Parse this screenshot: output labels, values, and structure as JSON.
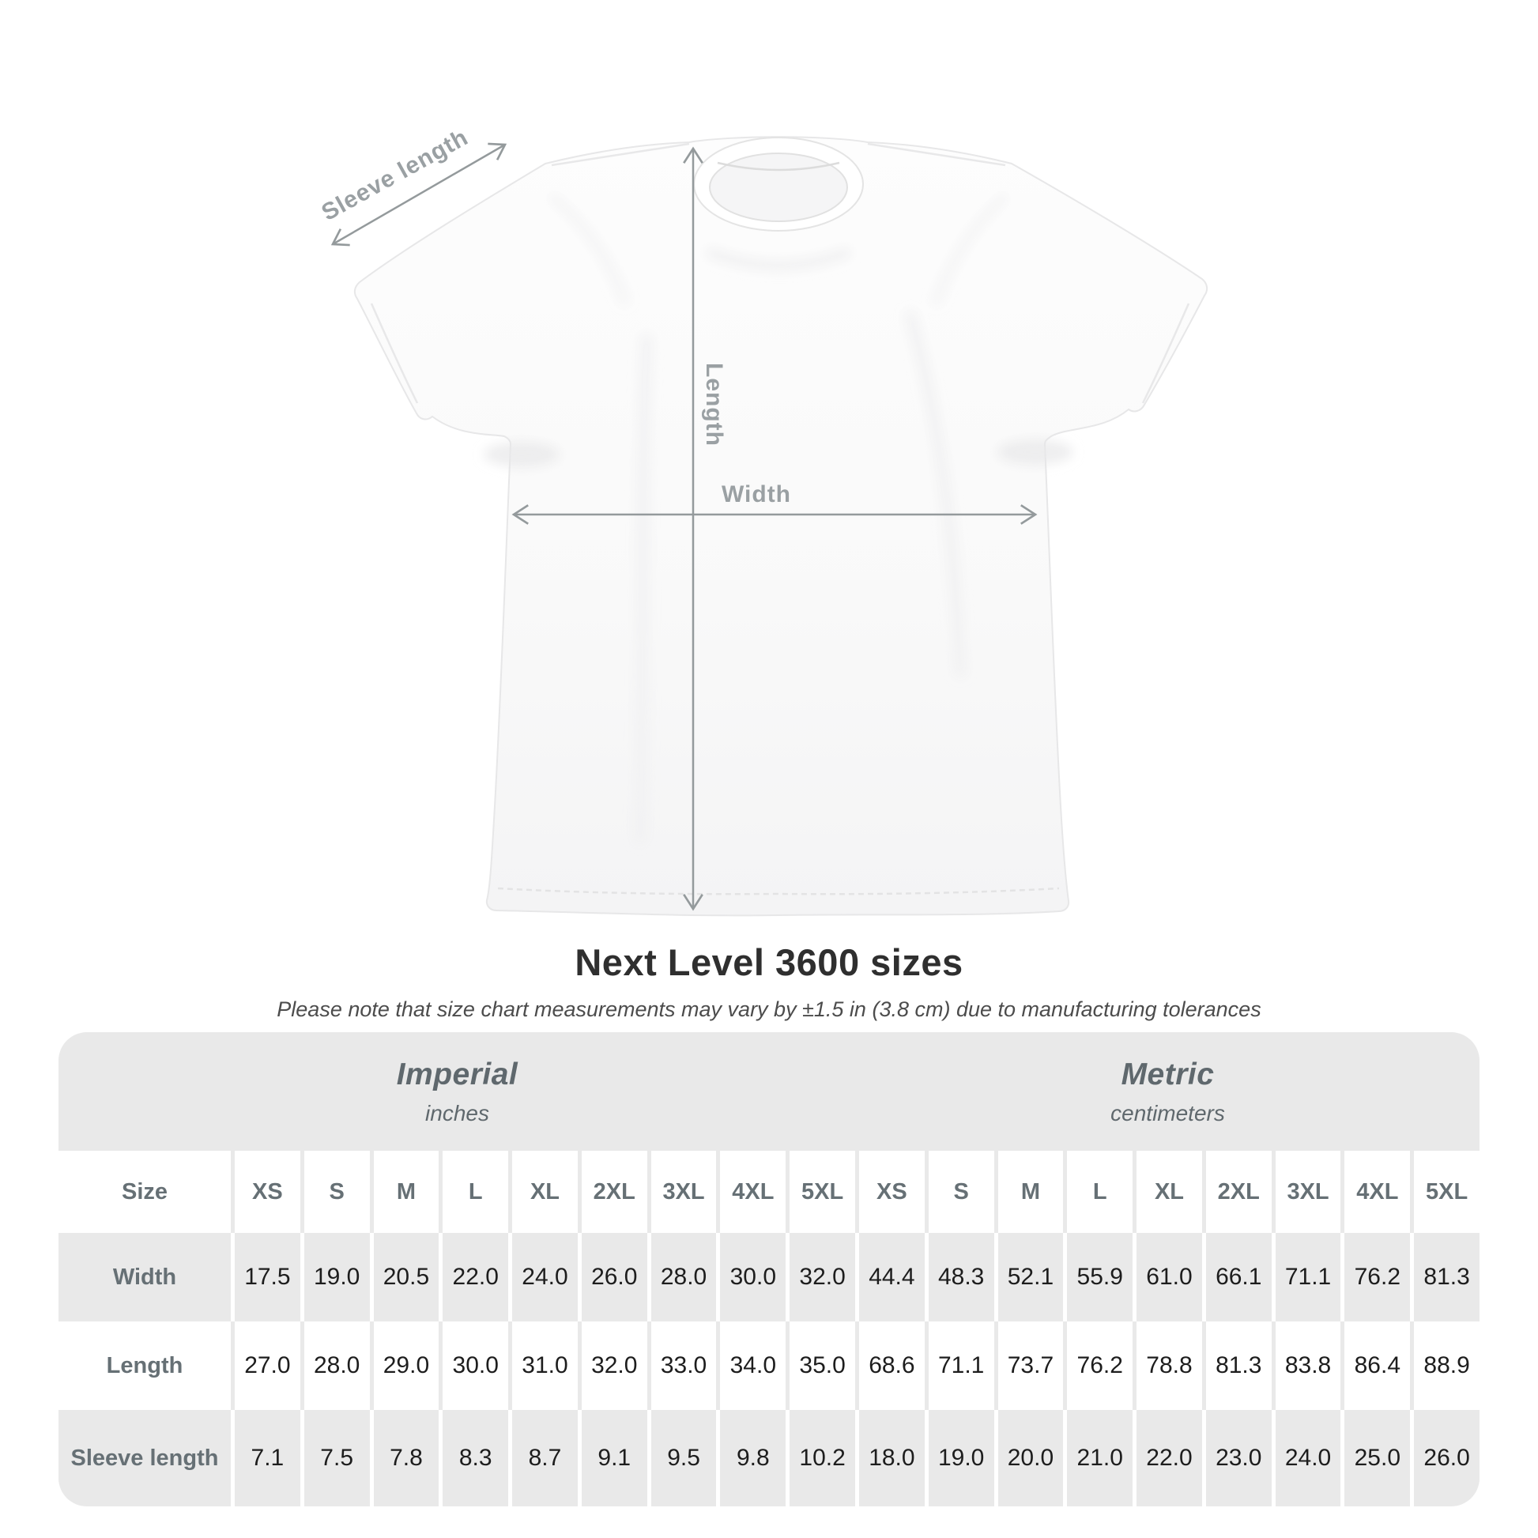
{
  "diagram": {
    "sleeve_label": "Sleeve length",
    "length_label": "Length",
    "width_label": "Width"
  },
  "chart_data": {
    "type": "table",
    "title": "Next Level 3600 sizes",
    "subtitle": "Please note that size chart measurements may vary by ±1.5 in (3.8 cm) due to manufacturing tolerances",
    "size_header": "Size",
    "sections": [
      {
        "label": "Imperial",
        "unit": "inches"
      },
      {
        "label": "Metric",
        "unit": "centimeters"
      }
    ],
    "sizes": [
      "XS",
      "S",
      "M",
      "L",
      "XL",
      "2XL",
      "3XL",
      "4XL",
      "5XL"
    ],
    "rows": [
      {
        "label": "Width",
        "imperial": [
          "17.5",
          "19.0",
          "20.5",
          "22.0",
          "24.0",
          "26.0",
          "28.0",
          "30.0",
          "32.0"
        ],
        "metric": [
          "44.4",
          "48.3",
          "52.1",
          "55.9",
          "61.0",
          "66.1",
          "71.1",
          "76.2",
          "81.3"
        ]
      },
      {
        "label": "Length",
        "imperial": [
          "27.0",
          "28.0",
          "29.0",
          "30.0",
          "31.0",
          "32.0",
          "33.0",
          "34.0",
          "35.0"
        ],
        "metric": [
          "68.6",
          "71.1",
          "73.7",
          "76.2",
          "78.8",
          "81.3",
          "83.8",
          "86.4",
          "88.9"
        ]
      },
      {
        "label": "Sleeve length",
        "imperial": [
          "7.1",
          "7.5",
          "7.8",
          "8.3",
          "8.7",
          "9.1",
          "9.5",
          "9.8",
          "10.2"
        ],
        "metric": [
          "18.0",
          "19.0",
          "20.0",
          "21.0",
          "22.0",
          "23.0",
          "24.0",
          "25.0",
          "26.0"
        ]
      }
    ],
    "colors": {
      "table_background": "#e9e9e9",
      "header_text": "#667075",
      "value_text": "#1d1d1d",
      "arrow": "#949a9c",
      "diagram_label": "#9aa0a3"
    }
  }
}
